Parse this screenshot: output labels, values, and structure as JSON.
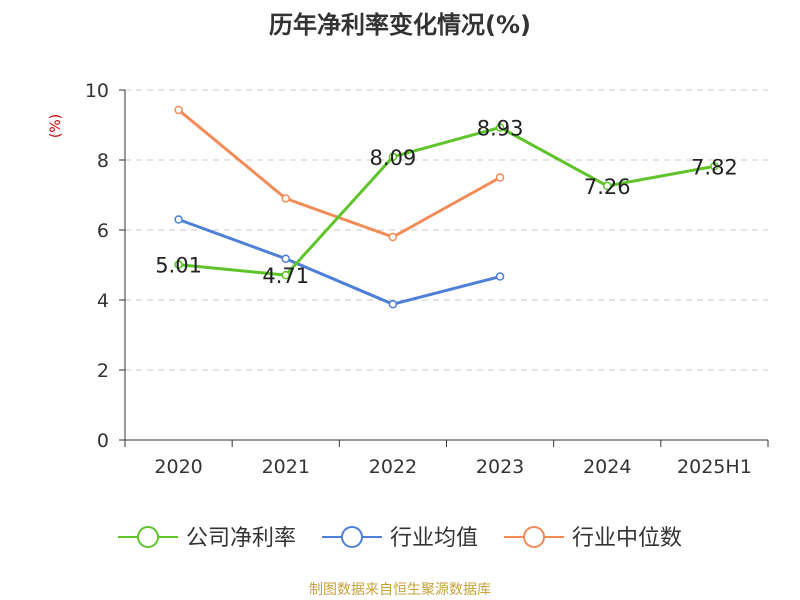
{
  "chart_data": {
    "type": "line",
    "title": "历年净利率变化情况(%)",
    "ylabel": "(%)",
    "xlabel": "",
    "categories": [
      "2020",
      "2021",
      "2022",
      "2023",
      "2024",
      "2025H1"
    ],
    "ylim": [
      0,
      10
    ],
    "yticks": [
      0,
      2,
      4,
      6,
      8,
      10
    ],
    "grid": true,
    "legend_position": "bottom",
    "series": [
      {
        "name": "公司净利率",
        "color": "#5ec42a",
        "values": [
          5.01,
          4.71,
          8.09,
          8.93,
          7.26,
          7.82
        ],
        "labels": [
          "5.01",
          "4.71",
          "8.09",
          "8.93",
          "7.26",
          "7.82"
        ]
      },
      {
        "name": "行业均值",
        "color": "#4e7fd9",
        "values": [
          6.3,
          5.18,
          3.88,
          4.67,
          null,
          null
        ]
      },
      {
        "name": "行业中位数",
        "color": "#f38b57",
        "values": [
          9.43,
          6.9,
          5.8,
          7.5,
          null,
          null
        ]
      }
    ]
  },
  "footer": {
    "source": "制图数据来自恒生聚源数据库",
    "color": "#c8a23c"
  }
}
